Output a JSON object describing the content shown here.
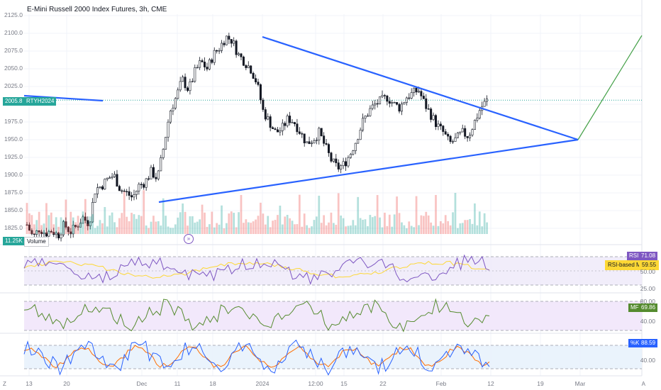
{
  "chart_title": "E-Mini Russell 2000 Index Futures, 3h, CME",
  "price_axis": [
    "2125.0",
    "2100.0",
    "2075.0",
    "2050.0",
    "2025.0",
    "2000.0",
    "1975.0",
    "1950.0",
    "1925.0",
    "1900.0",
    "1875.0",
    "1850.0",
    "1825.0"
  ],
  "last_price": "2005.8",
  "symbol": "RTYH2024",
  "volume_value": "11.25K",
  "volume_label": "Volume",
  "rsi": {
    "label": "RSI",
    "value": "71.08",
    "ma_label": "RSI-based MA",
    "ma_value": "59.55",
    "levels": [
      "50.00",
      "25.00"
    ]
  },
  "mf": {
    "label": "MF",
    "value": "69.86",
    "levels": [
      "80.00",
      "40.00"
    ]
  },
  "stoch": {
    "label": "%K",
    "value": "88.59",
    "levels": [
      "40.00"
    ]
  },
  "time_axis": [
    "13",
    "20",
    "Dec",
    "11",
    "18",
    "2024",
    "12:00",
    "15",
    "22",
    "Feb",
    "12",
    "19",
    "Mar"
  ],
  "corner_left": "Z",
  "corner_right": "A",
  "colors": {
    "up": "#26a69a",
    "down": "#ef5350",
    "trend": "#2962ff",
    "proj": "#43a047",
    "rsi": "#7e57c2",
    "ma": "#fdd835",
    "mf": "#558b2f",
    "k": "#2962ff",
    "d": "#ff6d00"
  },
  "chart_data": {
    "type": "candlestick",
    "title": "E-Mini Russell 2000 Index Futures, 3h, CME",
    "ylim": [
      1800,
      2130
    ],
    "close_path": [
      1830,
      1812,
      1825,
      1818,
      1822,
      1815,
      1830,
      1820,
      1828,
      1840,
      1832,
      1880,
      1885,
      1895,
      1900,
      1880,
      1875,
      1868,
      1885,
      1890,
      1905,
      1895,
      1940,
      1990,
      2010,
      2035,
      2020,
      2045,
      2060,
      2050,
      2070,
      2080,
      2095,
      2090,
      2070,
      2060,
      2050,
      2030,
      1990,
      1975,
      1960,
      1965,
      1980,
      1975,
      1960,
      1945,
      1950,
      1960,
      1940,
      1920,
      1910,
      1915,
      1930,
      1950,
      1975,
      1990,
      2000,
      2005,
      2010,
      2000,
      1995,
      2010,
      2015,
      2020,
      2000,
      1985,
      1970,
      1960,
      1945,
      1950,
      1960,
      1955,
      1975,
      1995,
      2005
    ],
    "trendlines": [
      {
        "name": "upper",
        "from": [
          1,
          2095
        ],
        "to": [
          3,
          1950
        ]
      },
      {
        "name": "lower",
        "from": [
          0,
          1862
        ],
        "to": [
          3,
          1950
        ]
      }
    ],
    "last_price": 2005.8,
    "indicators": {
      "RSI": {
        "value": 71.08,
        "ma": 59.55
      },
      "MF": {
        "value": 69.86
      },
      "Stoch_K": {
        "value": 88.59
      }
    }
  }
}
